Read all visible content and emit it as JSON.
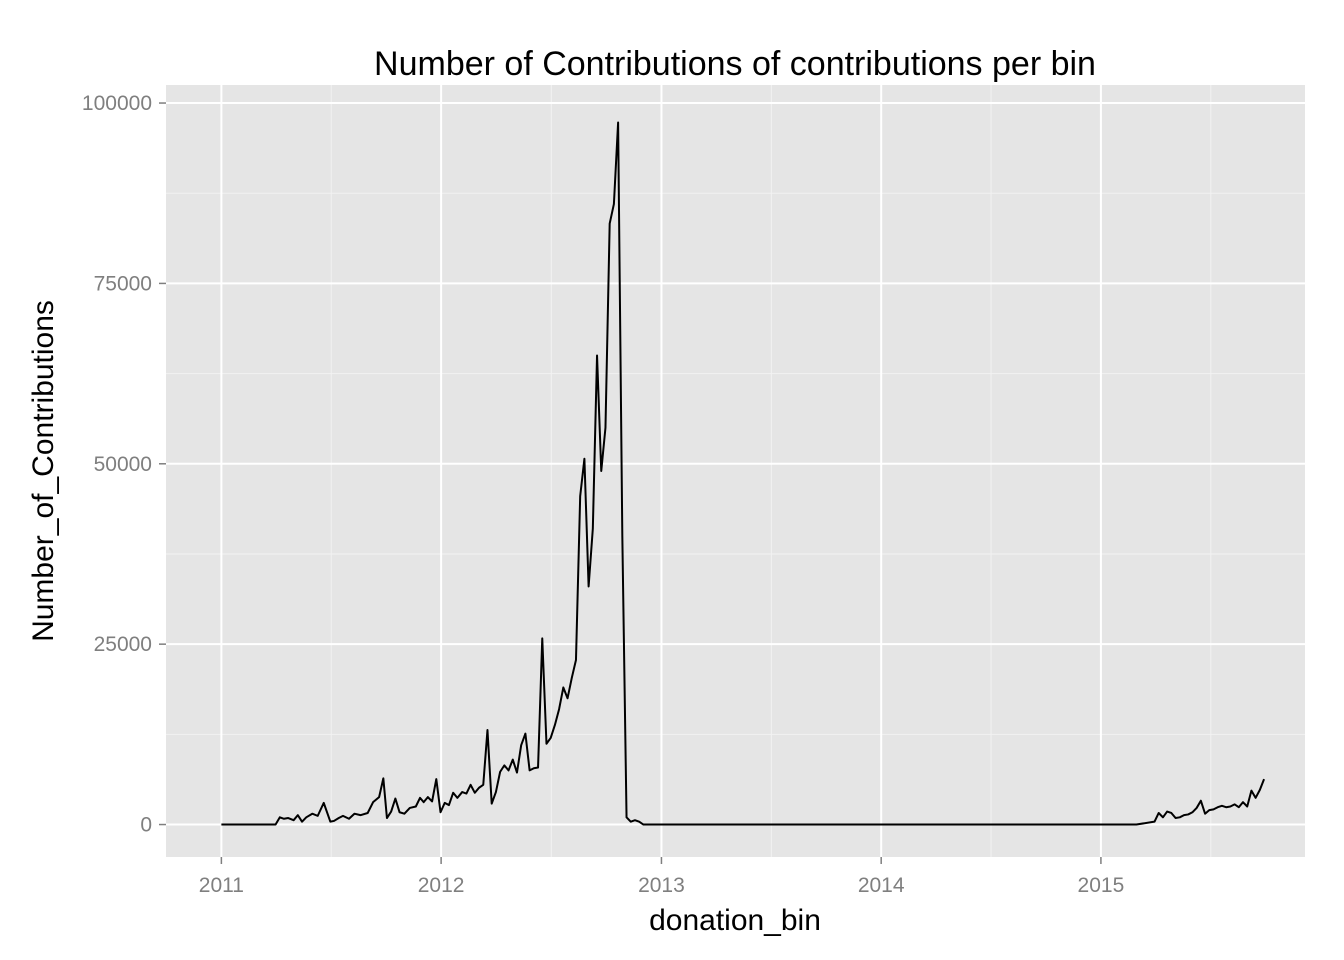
{
  "chart_data": {
    "type": "line",
    "title": "Number of Contributions of contributions per bin",
    "xlabel": "donation_bin",
    "ylabel": "Number_of_Contributions",
    "xlim": [
      "2010-10-01",
      "2015-12-06"
    ],
    "ylim": [
      -4500,
      102500
    ],
    "x_ticks": [
      "2011-01-01",
      "2012-01-01",
      "2013-01-01",
      "2014-01-01",
      "2015-01-01"
    ],
    "x_tick_labels": [
      "2011",
      "2012",
      "2013",
      "2014",
      "2015"
    ],
    "y_ticks": [
      0,
      25000,
      50000,
      75000,
      100000
    ],
    "y_tick_labels": [
      "0",
      "25000",
      "50000",
      "75000",
      "100000"
    ],
    "grid": true,
    "colors": {
      "panel": "#e5e5e5",
      "grid_major": "#ffffff",
      "grid_minor": "#f2f2f2",
      "line": "#000000"
    },
    "series": [
      {
        "x": [
          "2011-01-01",
          "2011-04-01",
          "2011-04-08",
          "2011-04-15",
          "2011-04-22",
          "2011-05-01",
          "2011-05-08",
          "2011-05-15",
          "2011-05-22",
          "2011-06-01",
          "2011-06-10",
          "2011-06-20",
          "2011-07-01",
          "2011-07-07",
          "2011-07-15",
          "2011-07-22",
          "2011-08-01",
          "2011-08-10",
          "2011-08-20",
          "2011-09-01",
          "2011-09-10",
          "2011-09-20",
          "2011-09-27",
          "2011-10-03",
          "2011-10-10",
          "2011-10-17",
          "2011-10-24",
          "2011-11-01",
          "2011-11-10",
          "2011-11-20",
          "2011-11-27",
          "2011-12-03",
          "2011-12-10",
          "2011-12-17",
          "2011-12-24",
          "2011-12-31",
          "2012-01-07",
          "2012-01-14",
          "2012-01-21",
          "2012-01-28",
          "2012-02-05",
          "2012-02-12",
          "2012-02-19",
          "2012-02-26",
          "2012-03-04",
          "2012-03-11",
          "2012-03-18",
          "2012-03-25",
          "2012-04-01",
          "2012-04-08",
          "2012-04-15",
          "2012-04-22",
          "2012-04-29",
          "2012-05-06",
          "2012-05-13",
          "2012-05-20",
          "2012-05-27",
          "2012-06-03",
          "2012-06-10",
          "2012-06-17",
          "2012-06-24",
          "2012-07-01",
          "2012-07-08",
          "2012-07-15",
          "2012-07-22",
          "2012-07-29",
          "2012-08-05",
          "2012-08-12",
          "2012-08-19",
          "2012-08-26",
          "2012-09-02",
          "2012-09-09",
          "2012-09-16",
          "2012-09-23",
          "2012-09-30",
          "2012-10-07",
          "2012-10-14",
          "2012-10-21",
          "2012-10-28",
          "2012-11-04",
          "2012-11-11",
          "2012-11-18",
          "2012-11-25",
          "2012-12-02",
          "2012-12-09",
          "2012-12-31",
          "2015-03-01",
          "2015-03-31",
          "2015-04-07",
          "2015-04-14",
          "2015-04-21",
          "2015-04-28",
          "2015-05-05",
          "2015-05-12",
          "2015-05-19",
          "2015-05-26",
          "2015-06-02",
          "2015-06-09",
          "2015-06-16",
          "2015-06-23",
          "2015-06-30",
          "2015-07-07",
          "2015-07-14",
          "2015-07-21",
          "2015-07-28",
          "2015-08-04",
          "2015-08-11",
          "2015-08-18",
          "2015-08-25",
          "2015-09-01",
          "2015-09-08",
          "2015-09-15",
          "2015-09-22",
          "2015-09-29"
        ],
        "y": [
          0,
          0,
          1000,
          800,
          900,
          600,
          1300,
          400,
          1000,
          1500,
          1200,
          3000,
          400,
          500,
          900,
          1200,
          800,
          1500,
          1300,
          1600,
          3100,
          3800,
          6400,
          900,
          1800,
          3600,
          1700,
          1500,
          2300,
          2500,
          3700,
          3100,
          3800,
          3200,
          6300,
          1700,
          3000,
          2700,
          4400,
          3700,
          4500,
          4300,
          5500,
          4400,
          5100,
          5500,
          13100,
          2900,
          4500,
          7300,
          8200,
          7500,
          9000,
          7200,
          11000,
          12600,
          7500,
          7800,
          7900,
          25800,
          11200,
          12000,
          13800,
          16000,
          19000,
          17500,
          20300,
          22800,
          45500,
          50700,
          33000,
          41000,
          65000,
          49000,
          55000,
          83300,
          86000,
          97300,
          40000,
          1000,
          400,
          600,
          400,
          0,
          0,
          0,
          0,
          400,
          1600,
          1000,
          1800,
          1600,
          900,
          1000,
          1300,
          1400,
          1700,
          2300,
          3300,
          1500,
          2000,
          2100,
          2400,
          2600,
          2400,
          2500,
          2800,
          2400,
          3100,
          2500,
          4700,
          3700,
          4800,
          6300
        ]
      }
    ]
  }
}
